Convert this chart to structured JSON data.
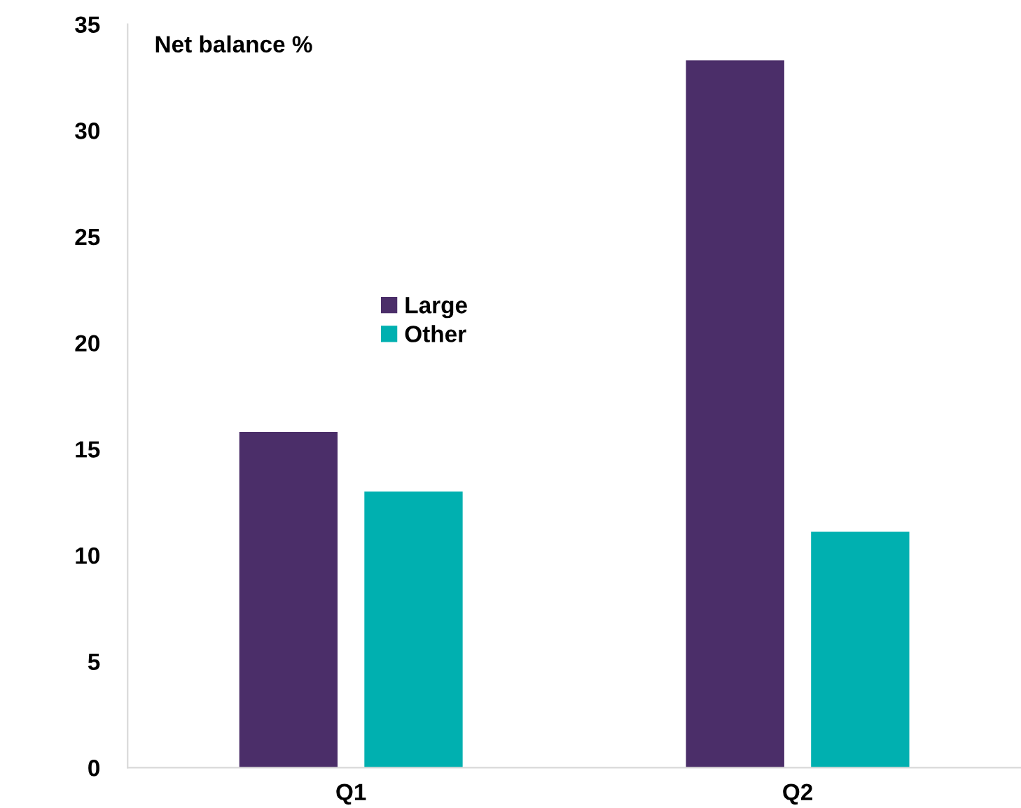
{
  "chart_data": {
    "type": "bar",
    "ylabel": "Net balance %",
    "categories": [
      "Q1",
      "Q2"
    ],
    "series": [
      {
        "name": "Large",
        "color": "#4b2e69",
        "values": [
          15.8,
          33.3
        ]
      },
      {
        "name": "Other",
        "color": "#00b0b0",
        "values": [
          13.0,
          11.1
        ]
      }
    ],
    "ylim": [
      0,
      35
    ],
    "yticks": [
      0,
      5,
      10,
      15,
      20,
      25,
      30,
      35
    ],
    "legend": "center left"
  }
}
